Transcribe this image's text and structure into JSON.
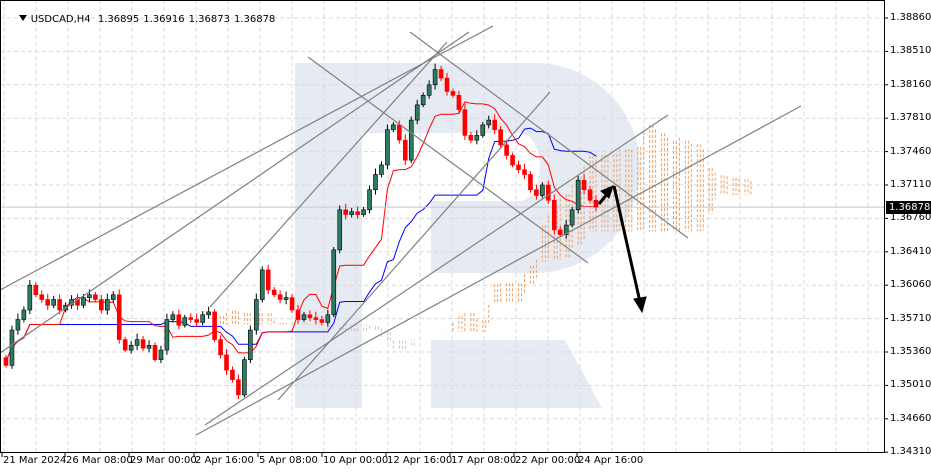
{
  "header": {
    "symbol_timeframe": "USDCAD,H4",
    "open": "1.36895",
    "high": "1.36916",
    "low": "1.36873",
    "close": "1.36878"
  },
  "colors": {
    "bull_candle": "#2f7a62",
    "bear_candle": "#ff0000",
    "tenkan": "#ff0000",
    "kijun": "#0000ff",
    "cloud_up": "#f0a060",
    "cloud_down": "#d4b8d8",
    "trendline": "#808080",
    "watermark": "#e6ebf3",
    "grid": "#d9d9d9"
  },
  "chart_data": {
    "type": "candlestick",
    "indicators": [
      "Ichimoku Kinko Hyo"
    ],
    "ylim": [
      1.3431,
      1.3886
    ],
    "y_ticks": [
      "1.38860",
      "1.38510",
      "1.38160",
      "1.37810",
      "1.37460",
      "1.37110",
      "1.36760",
      "1.36410",
      "1.36060",
      "1.35710",
      "1.35360",
      "1.35010",
      "1.34660",
      "1.34310"
    ],
    "x_ticks": [
      "21 Mar 2024",
      "26 Mar 08:00",
      "29 Mar 00:00",
      "2 Apr 16:00",
      "5 Apr 08:00",
      "10 Apr 00:00",
      "12 Apr 16:00",
      "17 Apr 08:00",
      "22 Apr 00:00",
      "24 Apr 16:00"
    ],
    "last_price": "1.36878",
    "first_open": 1.353,
    "closes": [
      1.3522,
      1.3559,
      1.357,
      1.358,
      1.3606,
      1.3596,
      1.3591,
      1.3585,
      1.3591,
      1.358,
      1.3585,
      1.3591,
      1.3585,
      1.3593,
      1.3596,
      1.3591,
      1.358,
      1.3591,
      1.3596,
      1.3549,
      1.3538,
      1.3543,
      1.3549,
      1.354,
      1.3543,
      1.3528,
      1.3538,
      1.357,
      1.3575,
      1.3564,
      1.3572,
      1.357,
      1.3567,
      1.3575,
      1.3578,
      1.3549,
      1.3533,
      1.3517,
      1.3507,
      1.3491,
      1.3528,
      1.3559,
      1.3591,
      1.3622,
      1.3601,
      1.3596,
      1.3591,
      1.3593,
      1.358,
      1.357,
      1.3575,
      1.3572,
      1.357,
      1.3567,
      1.3575,
      1.3643,
      1.3685,
      1.368,
      1.3683,
      1.368,
      1.3685,
      1.3706,
      1.3722,
      1.3732,
      1.3769,
      1.3774,
      1.3758,
      1.3737,
      1.3779,
      1.3795,
      1.3805,
      1.3816,
      1.3832,
      1.3823,
      1.3809,
      1.3805,
      1.379,
      1.3763,
      1.3758,
      1.3763,
      1.3774,
      1.3779,
      1.3769,
      1.3753,
      1.3742,
      1.3732,
      1.3727,
      1.3722,
      1.3706,
      1.37,
      1.3711,
      1.3695,
      1.3664,
      1.3659,
      1.3669,
      1.3685,
      1.3716,
      1.3706,
      1.3695,
      1.36878
    ],
    "forecast": "down"
  }
}
